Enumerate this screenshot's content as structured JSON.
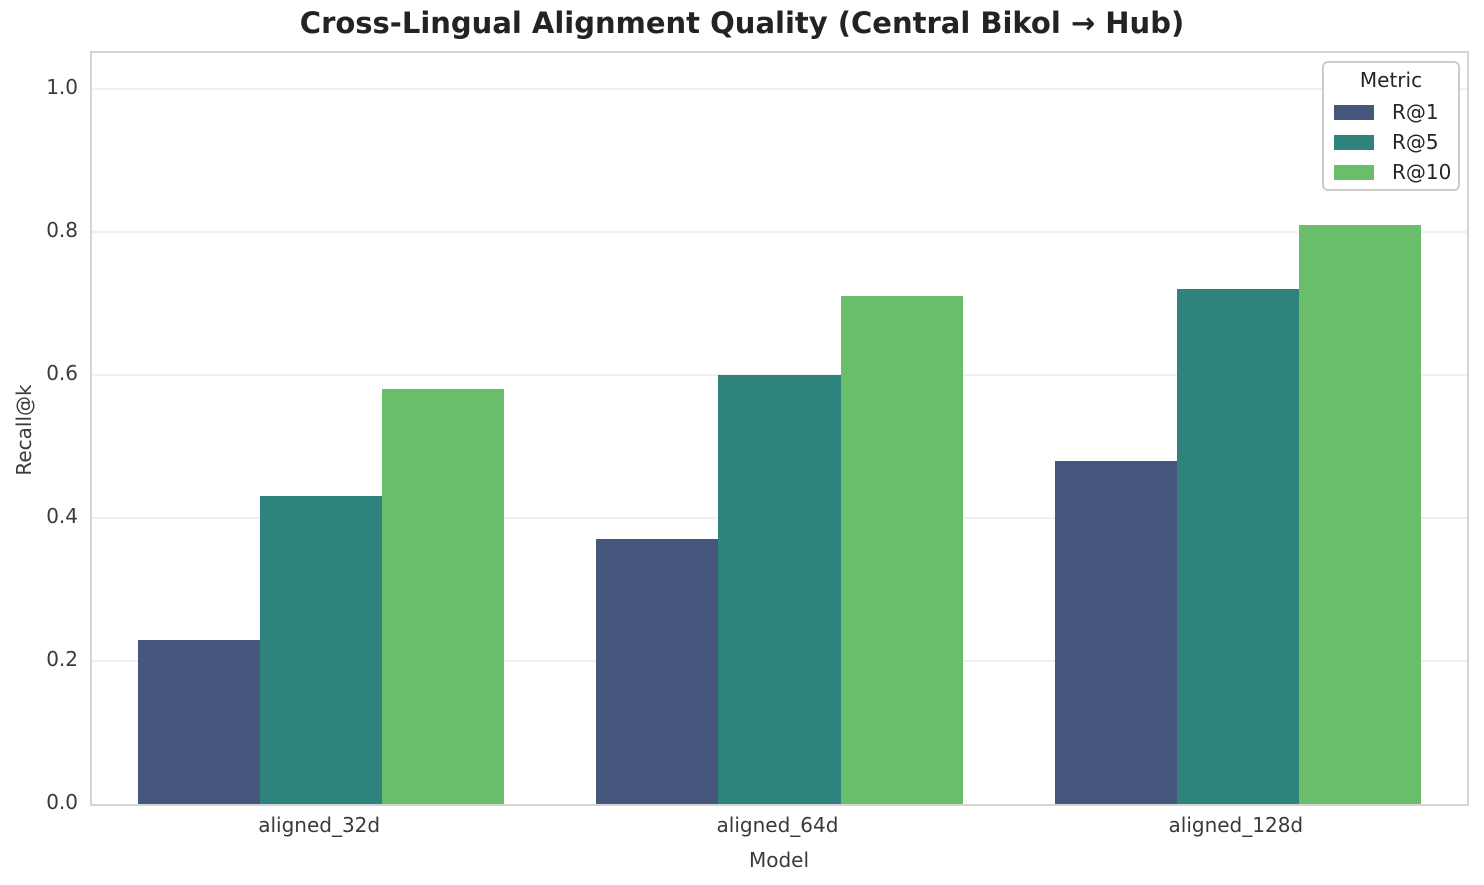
{
  "chart_data": {
    "type": "bar",
    "title": "Cross-Lingual Alignment Quality (Central Bikol → Hub)",
    "xlabel": "Model",
    "ylabel": "Recall@k",
    "categories": [
      "aligned_32d",
      "aligned_64d",
      "aligned_128d"
    ],
    "series": [
      {
        "name": "R@1",
        "color": "#46577e",
        "values": [
          0.23,
          0.37,
          0.48
        ]
      },
      {
        "name": "R@5",
        "color": "#2e837d",
        "values": [
          0.43,
          0.6,
          0.72
        ]
      },
      {
        "name": "R@10",
        "color": "#69bd6b",
        "values": [
          0.58,
          0.71,
          0.81
        ]
      }
    ],
    "ylim": [
      0,
      1.05
    ],
    "yticks": [
      0.0,
      0.2,
      0.4,
      0.6,
      0.8,
      1.0
    ],
    "ytick_labels": [
      "0.0",
      "0.2",
      "0.4",
      "0.6",
      "0.8",
      "1.0"
    ],
    "grid": true,
    "group_width_fraction": 0.8,
    "legend": {
      "title": "Metric",
      "position": "upper-right"
    },
    "colors": {
      "background": "#ffffff",
      "spine": "#d4d4d4",
      "gridline": "#f0f0f0",
      "title_text": "#232323",
      "tick_text": "#3a3a3a"
    }
  }
}
